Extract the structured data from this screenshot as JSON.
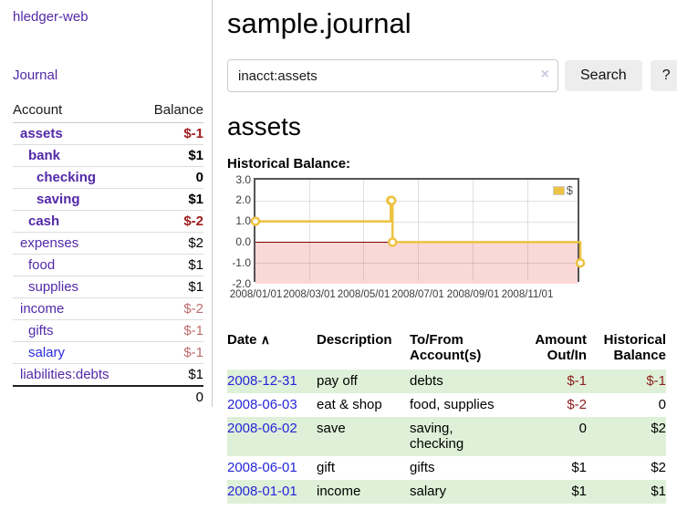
{
  "app": {
    "title": "hledger-web"
  },
  "sidebar": {
    "journal_link": "Journal",
    "accounts_table": {
      "headers": {
        "account": "Account",
        "balance": "Balance"
      },
      "rows": [
        {
          "name": "assets",
          "balance": "$-1",
          "level": 1,
          "emph": true
        },
        {
          "name": "bank",
          "balance": "$1",
          "level": 2,
          "emph": true
        },
        {
          "name": "checking",
          "balance": "0",
          "level": 3,
          "emph": true
        },
        {
          "name": "saving",
          "balance": "$1",
          "level": 3,
          "emph": true
        },
        {
          "name": "cash",
          "balance": "$-2",
          "level": 2,
          "emph": true
        },
        {
          "name": "expenses",
          "balance": "$2",
          "level": 1,
          "emph": false
        },
        {
          "name": "food",
          "balance": "$1",
          "level": 2,
          "emph": false
        },
        {
          "name": "supplies",
          "balance": "$1",
          "level": 2,
          "emph": false
        },
        {
          "name": "income",
          "balance": "$-2",
          "level": 1,
          "emph": false
        },
        {
          "name": "gifts",
          "balance": "$-1",
          "level": 2,
          "emph": false
        },
        {
          "name": "salary",
          "balance": "$-1",
          "level": 2,
          "emph": false,
          "link_color": "#2b2bdf"
        },
        {
          "name": "liabilities:debts",
          "balance": "$1",
          "level": 1,
          "emph": false
        }
      ],
      "total": "0"
    }
  },
  "header": {
    "title": "sample.journal"
  },
  "search": {
    "value": "inacct:assets",
    "clear_icon": "×",
    "button": "Search",
    "help_button": "?"
  },
  "account_page": {
    "title": "assets",
    "chart_label": "Historical Balance:"
  },
  "chart_data": {
    "type": "line",
    "title": "Historical Balance",
    "legend": "$",
    "legend_position": "top-right",
    "grid": true,
    "ylim": [
      -2,
      3
    ],
    "y_ticks": [
      "3.0",
      "2.0",
      "1.0",
      "0.0",
      "-1.0",
      "-2.0"
    ],
    "x_ticks": [
      "2008/01/01",
      "2008/03/01",
      "2008/05/01",
      "2008/07/01",
      "2008/09/01",
      "2008/11/01"
    ],
    "x_range": [
      "2008-01-01",
      "2009-01-01"
    ],
    "series": [
      {
        "name": "$",
        "color": "#edc240",
        "style": "step-after",
        "points": [
          [
            "2008-01-01",
            1
          ],
          [
            "2008-06-01",
            2
          ],
          [
            "2008-06-02",
            2
          ],
          [
            "2008-06-03",
            0
          ],
          [
            "2008-12-31",
            -1
          ]
        ]
      }
    ],
    "negative_region_color": "#fbd8d8",
    "zero_line_color": "#800000"
  },
  "register_table": {
    "headers": {
      "date": "Date",
      "sort_icon": "∧",
      "description": "Description",
      "accounts": "To/From\nAccount(s)",
      "amount": "Amount\nOut/In",
      "balance": "Historical\nBalance"
    },
    "rows": [
      {
        "date": "2008-12-31",
        "description": "pay off",
        "accounts": "debts",
        "amount": "$-1",
        "balance": "$-1"
      },
      {
        "date": "2008-06-03",
        "description": "eat & shop",
        "accounts": "food, supplies",
        "amount": "$-2",
        "balance": "0"
      },
      {
        "date": "2008-06-02",
        "description": "save",
        "accounts": "saving,\nchecking",
        "amount": "0",
        "balance": "$2"
      },
      {
        "date": "2008-06-01",
        "description": "gift",
        "accounts": "gifts",
        "amount": "$1",
        "balance": "$2"
      },
      {
        "date": "2008-01-01",
        "description": "income",
        "accounts": "salary",
        "amount": "$1",
        "balance": "$1"
      }
    ]
  }
}
